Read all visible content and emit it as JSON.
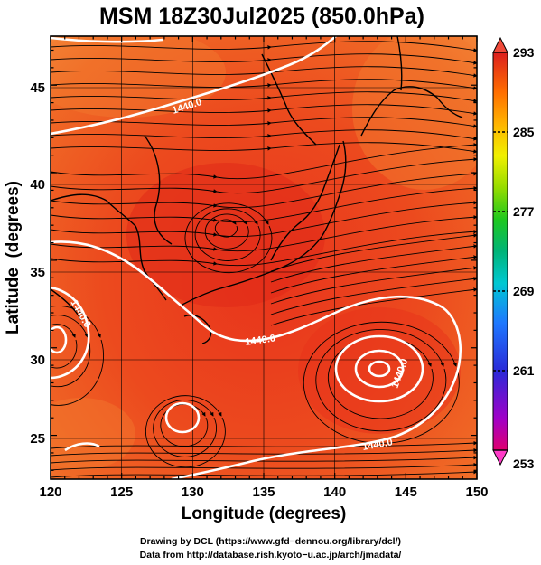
{
  "title": "MSM 18Z30Jul2025 (850.0hPa)",
  "map": {
    "xlabel": "Longitude (degrees)",
    "ylabel": "Latitude  (degrees)",
    "lon_range": [
      120,
      150
    ],
    "lat_range": [
      22.5,
      47.8
    ],
    "lon_ticks": [
      "120",
      "125",
      "130",
      "135",
      "140",
      "145",
      "150"
    ],
    "lat_ticks": [
      "25",
      "30",
      "35",
      "40",
      "45"
    ],
    "grid": true,
    "field": "temperature (K) shaded, 1440.0 gpm contour, wind streamlines",
    "contour_labels": [
      "1440.0",
      "1440.0",
      "1440.0",
      "1440.0",
      "1440.0"
    ],
    "contour_color": "#ffffff"
  },
  "colorbar": {
    "min": 253,
    "max": 293,
    "tick_labels": [
      "293",
      "285",
      "277",
      "269",
      "261",
      "253"
    ],
    "colors": [
      "#e0006e",
      "#a000c8",
      "#2a2ad8",
      "#1e78ff",
      "#00c8d2",
      "#00b478",
      "#1ec81e",
      "#96dc00",
      "#f0f000",
      "#ffb400",
      "#ff6e00",
      "#f03214",
      "#dc1e1e"
    ]
  },
  "credits": {
    "line1": "Drawing by DCL (https://www.gfd−dennou.org/library/dcl/)",
    "line2": "Data from http://database.rish.kyoto−u.ac.jp/arch/jmadata/"
  }
}
